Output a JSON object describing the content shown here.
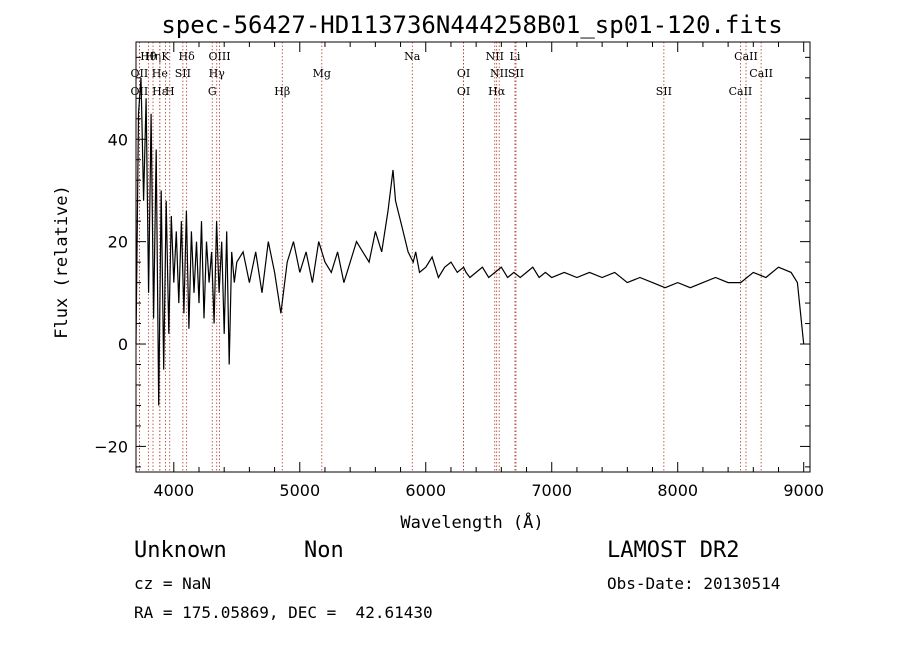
{
  "chart_data": {
    "type": "line",
    "title": "spec-56427-HD113736N444258B01_sp01-120.fits",
    "xlabel": "Wavelength (Å)",
    "ylabel": "Flux (relative)",
    "xlim": [
      3700,
      9050
    ],
    "ylim": [
      -25,
      59
    ],
    "xticks": [
      4000,
      5000,
      6000,
      7000,
      8000,
      9000
    ],
    "yticks": [
      -20,
      0,
      20,
      40
    ],
    "grid": false,
    "series": [
      {
        "color": "#000000",
        "x": [
          3700,
          3720,
          3740,
          3760,
          3780,
          3800,
          3820,
          3840,
          3860,
          3880,
          3900,
          3920,
          3940,
          3960,
          3980,
          4000,
          4020,
          4040,
          4060,
          4080,
          4100,
          4120,
          4140,
          4160,
          4180,
          4200,
          4220,
          4240,
          4260,
          4280,
          4300,
          4320,
          4340,
          4360,
          4380,
          4400,
          4420,
          4440,
          4460,
          4480,
          4500,
          4550,
          4600,
          4650,
          4700,
          4750,
          4800,
          4850,
          4900,
          4950,
          5000,
          5050,
          5100,
          5150,
          5200,
          5250,
          5300,
          5350,
          5400,
          5450,
          5500,
          5550,
          5600,
          5650,
          5700,
          5720,
          5740,
          5760,
          5780,
          5800,
          5820,
          5840,
          5860,
          5880,
          5900,
          5920,
          5950,
          6000,
          6050,
          6100,
          6150,
          6200,
          6250,
          6300,
          6320,
          6350,
          6400,
          6450,
          6500,
          6550,
          6600,
          6650,
          6700,
          6750,
          6800,
          6850,
          6900,
          6950,
          7000,
          7100,
          7200,
          7300,
          7400,
          7500,
          7600,
          7700,
          7800,
          7900,
          8000,
          8100,
          8200,
          8300,
          8400,
          8500,
          8600,
          8700,
          8800,
          8900,
          8950,
          9000
        ],
        "y": [
          0,
          45,
          52,
          28,
          48,
          10,
          45,
          5,
          38,
          -12,
          30,
          -5,
          28,
          2,
          25,
          12,
          22,
          8,
          24,
          6,
          26,
          3,
          22,
          10,
          20,
          8,
          24,
          5,
          20,
          12,
          18,
          4,
          24,
          10,
          20,
          2,
          22,
          -4,
          18,
          12,
          16,
          18,
          12,
          18,
          10,
          20,
          14,
          6,
          16,
          20,
          14,
          18,
          12,
          20,
          16,
          14,
          18,
          12,
          16,
          20,
          18,
          16,
          22,
          18,
          26,
          30,
          34,
          28,
          26,
          24,
          22,
          20,
          18,
          17,
          16,
          18,
          14,
          15,
          17,
          13,
          15,
          16,
          14,
          15,
          14,
          13,
          14,
          15,
          13,
          14,
          15,
          13,
          14,
          13,
          14,
          15,
          13,
          14,
          13,
          14,
          13,
          14,
          13,
          14,
          12,
          13,
          12,
          11,
          12,
          11,
          12,
          13,
          12,
          12,
          14,
          13,
          15,
          14,
          12,
          0
        ]
      }
    ],
    "lines": [
      {
        "name": "OII",
        "x": 3727,
        "row": 1
      },
      {
        "name": "OII",
        "x": 3727,
        "row": 2
      },
      {
        "name": "Hθ",
        "x": 3798,
        "row": 0
      },
      {
        "name": "Hη",
        "x": 3835,
        "row": 0
      },
      {
        "name": "He",
        "x": 3889,
        "row": 1
      },
      {
        "name": "Hε",
        "x": 3889,
        "row": 2
      },
      {
        "name": "K",
        "x": 3934,
        "row": 0
      },
      {
        "name": "H",
        "x": 3968,
        "row": 2
      },
      {
        "name": "SII",
        "x": 4072,
        "row": 1
      },
      {
        "name": "Hδ",
        "x": 4102,
        "row": 0
      },
      {
        "name": "OIII",
        "x": 4363,
        "row": 0
      },
      {
        "name": "Hγ",
        "x": 4341,
        "row": 1
      },
      {
        "name": "G",
        "x": 4305,
        "row": 2
      },
      {
        "name": "Hβ",
        "x": 4861,
        "row": 2
      },
      {
        "name": "Mg",
        "x": 5175,
        "row": 1
      },
      {
        "name": "Na",
        "x": 5893,
        "row": 0
      },
      {
        "name": "OI",
        "x": 6300,
        "row": 1
      },
      {
        "name": "OI",
        "x": 6300,
        "row": 2
      },
      {
        "name": "NII",
        "x": 6548,
        "row": 0
      },
      {
        "name": "NII",
        "x": 6583,
        "row": 1
      },
      {
        "name": "Hα",
        "x": 6563,
        "row": 2
      },
      {
        "name": "Li",
        "x": 6708,
        "row": 0
      },
      {
        "name": "SII",
        "x": 6716,
        "row": 1
      },
      {
        "name": "SII",
        "x": 7890,
        "row": 2
      },
      {
        "name": "CaII",
        "x": 8542,
        "row": 0
      },
      {
        "name": "CaII",
        "x": 8662,
        "row": 1
      },
      {
        "name": "CaII",
        "x": 8498,
        "row": 2
      }
    ]
  },
  "info": {
    "class": "Unknown",
    "subclass": "Non",
    "cz": "cz = NaN",
    "coords": "RA = 175.05869, DEC =  42.61430",
    "survey": "LAMOST DR2",
    "obs_date": "Obs-Date: 20130514"
  }
}
